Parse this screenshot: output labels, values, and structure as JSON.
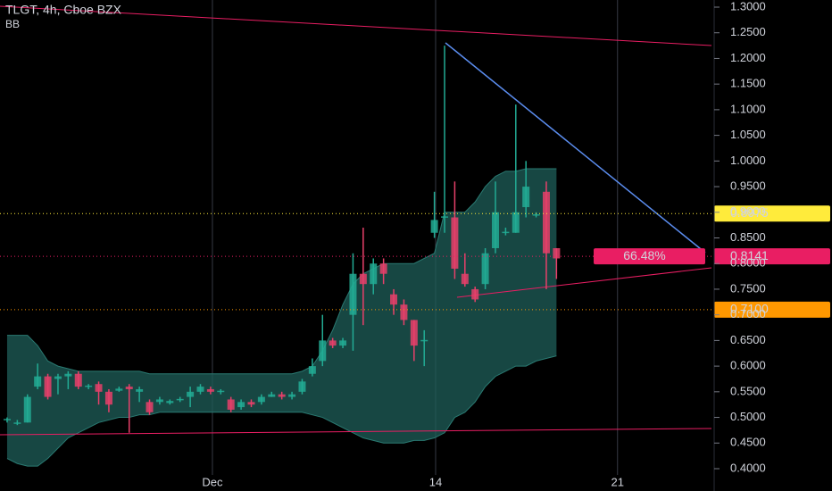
{
  "chart_data": {
    "type": "candlestick",
    "title": "TLGT, 4h, Cboe BZX",
    "indicator": "BB",
    "x": [
      0,
      1,
      2,
      3,
      4,
      5,
      6,
      7,
      8,
      9,
      10,
      11,
      12,
      13,
      14,
      15,
      16,
      17,
      18,
      19,
      20,
      21,
      22,
      23,
      24,
      25,
      26,
      27,
      28,
      29,
      30,
      31,
      32,
      33,
      34,
      35,
      36,
      37,
      38,
      39,
      40,
      41,
      42,
      43,
      44,
      45,
      46,
      47,
      48,
      49,
      50,
      51,
      52,
      53,
      54
    ],
    "open": [
      0.497,
      0.488,
      0.49,
      0.56,
      0.58,
      0.575,
      0.58,
      0.585,
      0.56,
      0.565,
      0.55,
      0.552,
      0.56,
      0.55,
      0.53,
      0.53,
      0.528,
      0.535,
      0.54,
      0.55,
      0.555,
      0.55,
      0.535,
      0.52,
      0.53,
      0.53,
      0.54,
      0.545,
      0.54,
      0.55,
      0.585,
      0.61,
      0.65,
      0.64,
      0.7,
      0.78,
      0.76,
      0.8,
      0.74,
      0.72,
      0.69,
      0.65,
      0.86,
      0.89,
      0.89,
      0.78,
      0.75,
      0.76,
      0.83,
      0.86,
      0.86,
      0.91,
      0.895,
      0.94,
      0.83
    ],
    "high": [
      0.5,
      0.495,
      0.545,
      0.605,
      0.585,
      0.585,
      0.59,
      0.59,
      0.565,
      0.57,
      0.555,
      0.56,
      0.565,
      0.56,
      0.535,
      0.54,
      0.535,
      0.54,
      0.56,
      0.565,
      0.56,
      0.555,
      0.54,
      0.535,
      0.535,
      0.545,
      0.55,
      0.55,
      0.55,
      0.575,
      0.615,
      0.7,
      0.655,
      0.655,
      0.82,
      0.87,
      0.81,
      0.81,
      0.75,
      0.73,
      0.69,
      0.67,
      0.94,
      1.225,
      0.96,
      0.82,
      0.755,
      0.83,
      0.96,
      0.87,
      1.11,
      1.0,
      0.9,
      0.96,
      0.83
    ],
    "low": [
      0.49,
      0.485,
      0.49,
      0.555,
      0.535,
      0.545,
      0.555,
      0.555,
      0.555,
      0.525,
      0.51,
      0.55,
      0.47,
      0.53,
      0.505,
      0.525,
      0.525,
      0.53,
      0.52,
      0.545,
      0.545,
      0.545,
      0.51,
      0.515,
      0.52,
      0.525,
      0.54,
      0.535,
      0.535,
      0.545,
      0.58,
      0.6,
      0.635,
      0.635,
      0.63,
      0.68,
      0.74,
      0.76,
      0.7,
      0.68,
      0.61,
      0.6,
      0.85,
      0.86,
      0.77,
      0.755,
      0.725,
      0.75,
      0.82,
      0.855,
      0.86,
      0.89,
      0.89,
      0.75,
      0.77
    ],
    "close": [
      0.497,
      0.49,
      0.54,
      0.58,
      0.54,
      0.58,
      0.585,
      0.56,
      0.562,
      0.55,
      0.525,
      0.556,
      0.555,
      0.555,
      0.51,
      0.535,
      0.532,
      0.536,
      0.55,
      0.56,
      0.55,
      0.552,
      0.515,
      0.53,
      0.525,
      0.54,
      0.545,
      0.54,
      0.545,
      0.57,
      0.6,
      0.65,
      0.64,
      0.65,
      0.78,
      0.76,
      0.8,
      0.78,
      0.72,
      0.69,
      0.64,
      0.651,
      0.885,
      0.892,
      0.79,
      0.76,
      0.73,
      0.82,
      0.9,
      0.862,
      0.9,
      0.95,
      0.896,
      0.82,
      0.81
    ],
    "bb_upper": [
      0.66,
      0.66,
      0.66,
      0.64,
      0.61,
      0.6,
      0.595,
      0.59,
      0.59,
      0.59,
      0.59,
      0.59,
      0.59,
      0.59,
      0.585,
      0.585,
      0.585,
      0.585,
      0.585,
      0.585,
      0.585,
      0.585,
      0.585,
      0.585,
      0.585,
      0.585,
      0.585,
      0.585,
      0.585,
      0.59,
      0.6,
      0.63,
      0.67,
      0.72,
      0.76,
      0.78,
      0.79,
      0.8,
      0.8,
      0.8,
      0.8,
      0.81,
      0.82,
      0.9,
      0.9,
      0.9,
      0.92,
      0.95,
      0.97,
      0.98,
      0.98,
      0.985,
      0.985,
      0.985,
      0.985
    ],
    "bb_lower": [
      0.42,
      0.41,
      0.405,
      0.405,
      0.42,
      0.44,
      0.46,
      0.47,
      0.48,
      0.49,
      0.495,
      0.5,
      0.5,
      0.505,
      0.505,
      0.51,
      0.51,
      0.51,
      0.51,
      0.51,
      0.51,
      0.51,
      0.51,
      0.51,
      0.51,
      0.51,
      0.51,
      0.51,
      0.51,
      0.51,
      0.505,
      0.5,
      0.49,
      0.48,
      0.47,
      0.46,
      0.455,
      0.45,
      0.45,
      0.45,
      0.455,
      0.455,
      0.46,
      0.47,
      0.5,
      0.51,
      0.53,
      0.56,
      0.58,
      0.59,
      0.6,
      0.6,
      0.61,
      0.615,
      0.62
    ],
    "up_color": "#22ab94",
    "down_color": "#e8406a",
    "band_color": "#1f5f5a",
    "xlim": [
      -0.7,
      69.5
    ],
    "xticks": [
      {
        "value": 20.18,
        "label": "Dec"
      },
      {
        "value": 42.12,
        "label": "14"
      },
      {
        "value": 60,
        "label": "21"
      }
    ],
    "ylim": [
      0.4,
      1.3
    ],
    "yticks": [
      {
        "value": 0.4,
        "label": "0.4000"
      },
      {
        "value": 0.45,
        "label": "0.4500"
      },
      {
        "value": 0.5,
        "label": "0.5000"
      },
      {
        "value": 0.55,
        "label": "0.5500"
      },
      {
        "value": 0.6,
        "label": "0.6000"
      },
      {
        "value": 0.65,
        "label": "0.6500"
      },
      {
        "value": 0.7,
        "label": "0.7000"
      },
      {
        "value": 0.75,
        "label": "0.7500"
      },
      {
        "value": 0.8,
        "label": "0.8000"
      },
      {
        "value": 0.85,
        "label": "0.8500"
      },
      {
        "value": 0.9,
        "label": "0.9000"
      },
      {
        "value": 0.95,
        "label": "0.9500"
      },
      {
        "value": 1.0,
        "label": "1.0000"
      },
      {
        "value": 1.05,
        "label": "1.0500"
      },
      {
        "value": 1.1,
        "label": "1.1000"
      },
      {
        "value": 1.15,
        "label": "1.1500"
      },
      {
        "value": 1.2,
        "label": "1.2000"
      },
      {
        "value": 1.25,
        "label": "1.2500"
      },
      {
        "value": 1.3,
        "label": "1.3000"
      }
    ],
    "price_lines": [
      {
        "value": 0.8975,
        "label": "0.8975",
        "color": "#ffeb3b",
        "text_color": "#000000"
      },
      {
        "value": 0.8141,
        "label": "0.8141",
        "color": "#e91e63",
        "text_color": "#ffffff"
      },
      {
        "value": 0.71,
        "label": "0.7100",
        "color": "#ff9800",
        "text_color": "#000000"
      }
    ],
    "change_label": "66.48%"
  }
}
